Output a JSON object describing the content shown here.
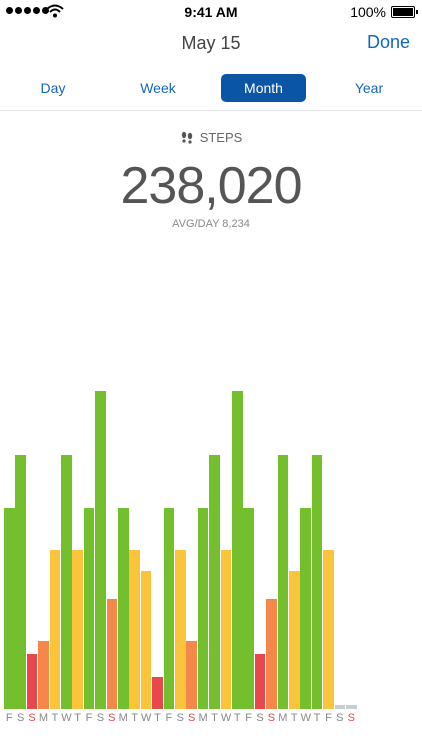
{
  "status_bar": {
    "time": "9:41 AM",
    "battery": "100%"
  },
  "nav": {
    "title": "May 15",
    "done_label": "Done"
  },
  "tabs": [
    {
      "label": "Day",
      "active": false
    },
    {
      "label": "Week",
      "active": false
    },
    {
      "label": "Month",
      "active": true
    },
    {
      "label": "Year",
      "active": false
    }
  ],
  "summary": {
    "metric_label": "STEPS",
    "total": "238,020",
    "avg_label": "AVG/DAY",
    "avg_value": "8,234"
  },
  "icons": {
    "steps": "footprints-icon",
    "wifi": "wifi-icon",
    "battery": "battery-icon",
    "signal": "signal-dots-icon"
  },
  "colors": {
    "accent": "#1565c0",
    "green": "#74bf2e",
    "yellow": "#fbc43a",
    "orange": "#f5874a",
    "red": "#e8474e",
    "gray": "#c8cdd3",
    "sunday_label": "#e8474e"
  },
  "chart_data": {
    "type": "bar",
    "title": "",
    "ylim": [
      0,
      15000
    ],
    "ymax_note": "",
    "days": [
      {
        "day": "F",
        "value": 9500,
        "color": "green"
      },
      {
        "day": "S",
        "value": 12000,
        "color": "green"
      },
      {
        "day": "S",
        "value": 2600,
        "color": "red",
        "sunday": true
      },
      {
        "day": "M",
        "value": 3200,
        "color": "orange"
      },
      {
        "day": "T",
        "value": 7500,
        "color": "yellow"
      },
      {
        "day": "W",
        "value": 12000,
        "color": "green"
      },
      {
        "day": "T",
        "value": 7500,
        "color": "yellow"
      },
      {
        "day": "F",
        "value": 9500,
        "color": "green"
      },
      {
        "day": "S",
        "value": 15000,
        "color": "green"
      },
      {
        "day": "S",
        "value": 5200,
        "color": "orange",
        "sunday": true
      },
      {
        "day": "M",
        "value": 9500,
        "color": "green"
      },
      {
        "day": "T",
        "value": 7500,
        "color": "yellow"
      },
      {
        "day": "W",
        "value": 6500,
        "color": "yellow"
      },
      {
        "day": "T",
        "value": 1500,
        "color": "red"
      },
      {
        "day": "F",
        "value": 9500,
        "color": "green"
      },
      {
        "day": "S",
        "value": 7500,
        "color": "yellow"
      },
      {
        "day": "S",
        "value": 3200,
        "color": "orange",
        "sunday": true
      },
      {
        "day": "M",
        "value": 9500,
        "color": "green"
      },
      {
        "day": "T",
        "value": 12000,
        "color": "green"
      },
      {
        "day": "W",
        "value": 7500,
        "color": "yellow"
      },
      {
        "day": "T",
        "value": 15000,
        "color": "green"
      },
      {
        "day": "F",
        "value": 9500,
        "color": "green"
      },
      {
        "day": "S",
        "value": 2600,
        "color": "red"
      },
      {
        "day": "S",
        "value": 5200,
        "color": "orange",
        "sunday": true
      },
      {
        "day": "M",
        "value": 12000,
        "color": "green"
      },
      {
        "day": "T",
        "value": 6500,
        "color": "yellow"
      },
      {
        "day": "W",
        "value": 9500,
        "color": "green"
      },
      {
        "day": "T",
        "value": 12000,
        "color": "green"
      },
      {
        "day": "F",
        "value": 7500,
        "color": "yellow"
      },
      {
        "day": "S",
        "value": 200,
        "color": "gray"
      },
      {
        "day": "S",
        "value": 200,
        "color": "gray",
        "sunday": true
      }
    ]
  }
}
